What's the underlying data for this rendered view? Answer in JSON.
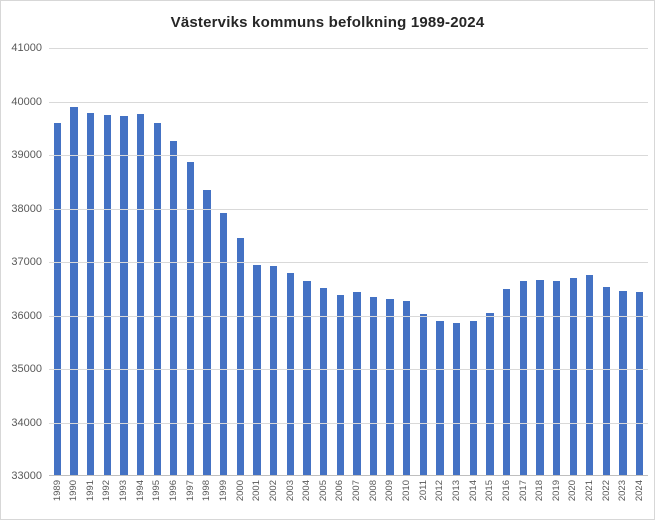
{
  "chart_data": {
    "type": "bar",
    "title": "Västerviks kommuns befolkning 1989-2024",
    "categories": [
      "1989",
      "1990",
      "1991",
      "1992",
      "1993",
      "1994",
      "1995",
      "1996",
      "1997",
      "1998",
      "1999",
      "2000",
      "2001",
      "2002",
      "2003",
      "2004",
      "2005",
      "2006",
      "2007",
      "2008",
      "2009",
      "2010",
      "2011",
      "2012",
      "2013",
      "2014",
      "2015",
      "2016",
      "2017",
      "2018",
      "2019",
      "2020",
      "2021",
      "2022",
      "2023",
      "2024"
    ],
    "values": [
      39600,
      39900,
      39780,
      39750,
      39720,
      39760,
      39600,
      39260,
      38870,
      38340,
      37920,
      37450,
      36950,
      36920,
      36800,
      36640,
      36510,
      36390,
      36440,
      36350,
      36300,
      36270,
      36020,
      35890,
      35860,
      35890,
      36040,
      36500,
      36650,
      36660,
      36650,
      36700,
      36750,
      36540,
      36450,
      36440
    ],
    "xlabel": "",
    "ylabel": "",
    "ylim": [
      33000,
      41000
    ],
    "ytick_step": 1000,
    "ytick_labels": [
      "33000",
      "34000",
      "35000",
      "36000",
      "37000",
      "38000",
      "39000",
      "40000",
      "41000"
    ],
    "grid": true,
    "legend_position": "none",
    "bar_color": "#4472C4",
    "colors": {
      "gridline": "#D9D9D9",
      "axis_line": "#BFBFBF",
      "tick_label": "#595959",
      "title": "#262626",
      "background": "#FFFFFF",
      "border": "#D7D7D7"
    }
  }
}
